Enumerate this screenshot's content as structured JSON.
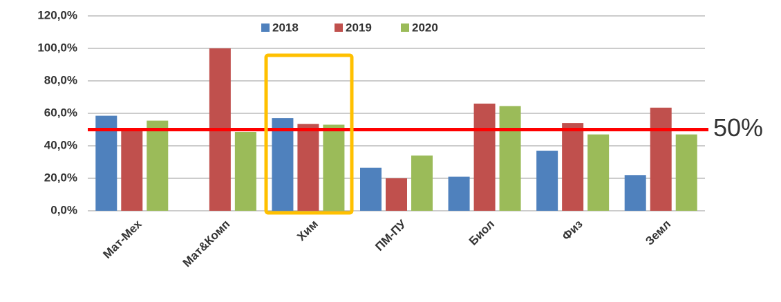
{
  "chart_data": {
    "type": "bar",
    "categories": [
      "Мат-Мех",
      "Мат&Комп",
      "Хим",
      "ПМ-ПУ",
      "Биол",
      "Физ",
      "Земл"
    ],
    "series": [
      {
        "name": "2018",
        "color": "#4f81bd",
        "values": [
          58.5,
          null,
          57,
          26.5,
          21,
          37,
          22
        ]
      },
      {
        "name": "2019",
        "color": "#c0504d",
        "values": [
          50.5,
          100,
          53.5,
          20,
          66,
          54,
          63.5
        ]
      },
      {
        "name": "2020",
        "color": "#9bbb59",
        "values": [
          55.5,
          48.5,
          53,
          34,
          64.5,
          47,
          47
        ]
      }
    ],
    "ylim": [
      0,
      120
    ],
    "yticks": [
      {
        "value": 0,
        "label": "0,0%"
      },
      {
        "value": 20,
        "label": "20,0%"
      },
      {
        "value": 40,
        "label": "40,0%"
      },
      {
        "value": 60,
        "label": "60,0%"
      },
      {
        "value": 80,
        "label": "80,0%"
      },
      {
        "value": 100,
        "label": "100,0%"
      },
      {
        "value": 120,
        "label": "120,0%"
      }
    ],
    "grid": true,
    "legend": "top",
    "reference_line": {
      "value": 50,
      "label": "50%",
      "color": "#ff0000"
    }
  }
}
